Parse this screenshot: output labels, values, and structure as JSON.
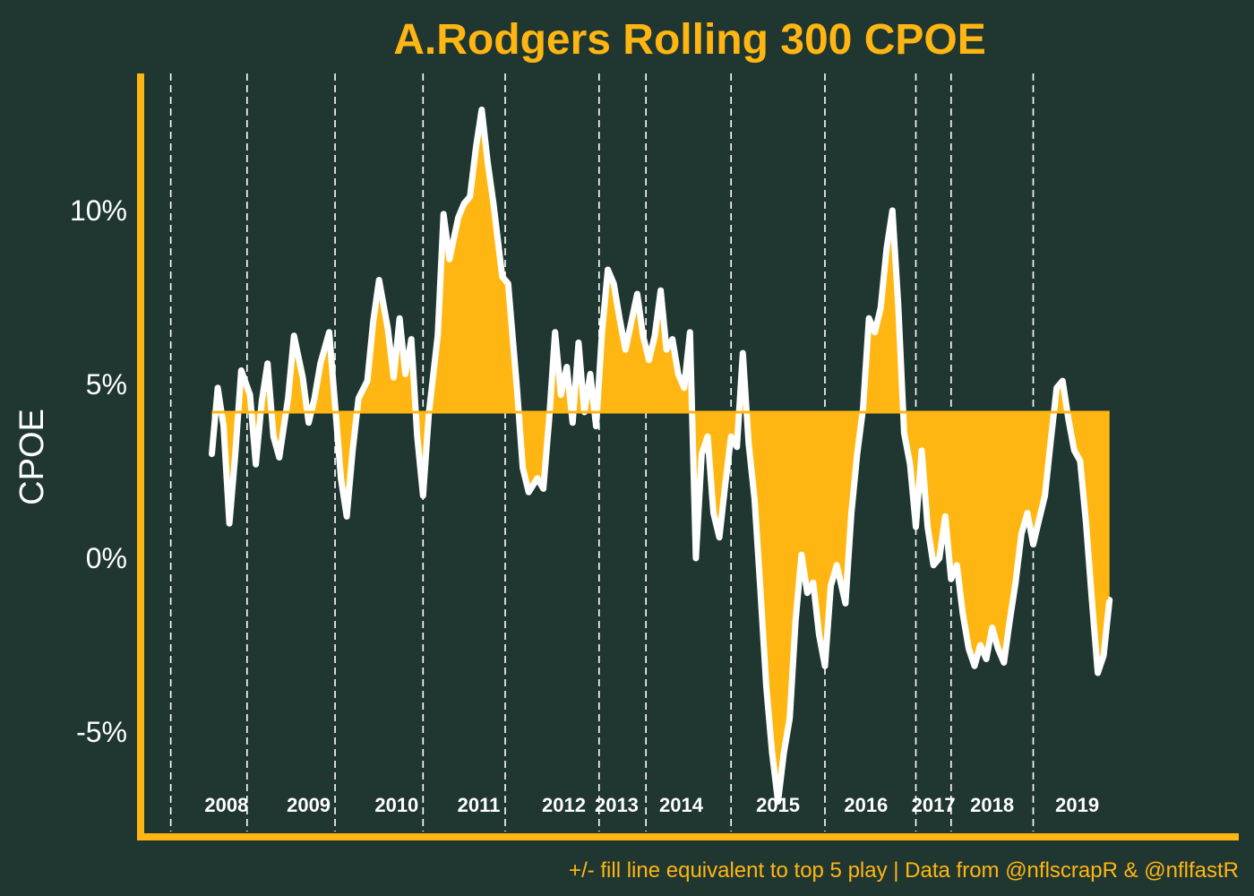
{
  "colors": {
    "background": "#203731",
    "gold": "#FFB612",
    "line": "#FFFFFF",
    "text": "#FFFFFF"
  },
  "chart_data": {
    "type": "area",
    "title": "A.Rodgers Rolling 300 CPOE",
    "ylabel": "CPOE",
    "xlabel": "",
    "caption": "+/- fill line equivalent to top 5 play | Data from @nflscrapR & @nflfastR",
    "ylim": [
      -8,
      14
    ],
    "yticks": [
      -5,
      0,
      5,
      10
    ],
    "ytick_labels": [
      "-5%",
      "0%",
      "5%",
      "10%"
    ],
    "reference_line": 4.2,
    "grid": false,
    "season_boundaries": [
      0.6,
      3.2,
      6.2,
      9.2,
      12.0,
      15.2,
      16.8,
      19.7,
      22.9,
      26.0,
      27.2,
      30.0
    ],
    "seasons": [
      {
        "label": "2008",
        "x": 2.5
      },
      {
        "label": "2009",
        "x": 5.3
      },
      {
        "label": "2010",
        "x": 8.3
      },
      {
        "label": "2011",
        "x": 11.1
      },
      {
        "label": "2012",
        "x": 14.0
      },
      {
        "label": "2013",
        "x": 15.8
      },
      {
        "label": "2014",
        "x": 18.0
      },
      {
        "label": "2015",
        "x": 21.3
      },
      {
        "label": "2016",
        "x": 24.3
      },
      {
        "label": "2017",
        "x": 26.6
      },
      {
        "label": "2018",
        "x": 28.6
      },
      {
        "label": "2019",
        "x": 31.5
      }
    ],
    "series": [
      {
        "points": [
          [
            2.0,
            3.0
          ],
          [
            2.2,
            4.9
          ],
          [
            2.4,
            3.8
          ],
          [
            2.6,
            1.0
          ],
          [
            2.8,
            3.0
          ],
          [
            3.0,
            5.4
          ],
          [
            3.3,
            4.7
          ],
          [
            3.5,
            2.7
          ],
          [
            3.7,
            4.5
          ],
          [
            3.9,
            5.6
          ],
          [
            4.1,
            3.5
          ],
          [
            4.3,
            2.9
          ],
          [
            4.6,
            4.6
          ],
          [
            4.8,
            6.4
          ],
          [
            5.1,
            5.2
          ],
          [
            5.3,
            3.9
          ],
          [
            5.5,
            4.6
          ],
          [
            5.7,
            5.6
          ],
          [
            6.0,
            6.5
          ],
          [
            6.2,
            4.4
          ],
          [
            6.4,
            2.3
          ],
          [
            6.6,
            1.2
          ],
          [
            6.8,
            3.1
          ],
          [
            7.0,
            4.6
          ],
          [
            7.3,
            5.1
          ],
          [
            7.5,
            6.8
          ],
          [
            7.7,
            8.0
          ],
          [
            8.0,
            6.6
          ],
          [
            8.2,
            5.2
          ],
          [
            8.4,
            6.9
          ],
          [
            8.6,
            5.3
          ],
          [
            8.8,
            6.3
          ],
          [
            9.0,
            3.5
          ],
          [
            9.2,
            1.8
          ],
          [
            9.4,
            4.2
          ],
          [
            9.7,
            6.4
          ],
          [
            9.9,
            9.9
          ],
          [
            10.1,
            8.6
          ],
          [
            10.4,
            9.8
          ],
          [
            10.6,
            10.2
          ],
          [
            10.8,
            10.4
          ],
          [
            11.0,
            11.8
          ],
          [
            11.2,
            12.9
          ],
          [
            11.4,
            11.4
          ],
          [
            11.6,
            10.2
          ],
          [
            11.9,
            8.1
          ],
          [
            12.1,
            7.9
          ],
          [
            12.4,
            4.9
          ],
          [
            12.6,
            2.6
          ],
          [
            12.8,
            1.9
          ],
          [
            13.1,
            2.3
          ],
          [
            13.3,
            2.0
          ],
          [
            13.5,
            4.0
          ],
          [
            13.7,
            6.5
          ],
          [
            13.9,
            4.7
          ],
          [
            14.1,
            5.5
          ],
          [
            14.3,
            3.9
          ],
          [
            14.5,
            6.2
          ],
          [
            14.7,
            4.2
          ],
          [
            14.9,
            5.3
          ],
          [
            15.1,
            3.8
          ],
          [
            15.3,
            6.5
          ],
          [
            15.5,
            8.3
          ],
          [
            15.7,
            7.9
          ],
          [
            15.9,
            6.9
          ],
          [
            16.1,
            6.0
          ],
          [
            16.3,
            6.8
          ],
          [
            16.5,
            7.6
          ],
          [
            16.7,
            6.4
          ],
          [
            16.9,
            5.7
          ],
          [
            17.1,
            6.4
          ],
          [
            17.3,
            7.7
          ],
          [
            17.5,
            6.0
          ],
          [
            17.7,
            6.3
          ],
          [
            17.9,
            5.3
          ],
          [
            18.1,
            4.9
          ],
          [
            18.3,
            6.5
          ],
          [
            18.5,
            0.0
          ],
          [
            18.7,
            3.0
          ],
          [
            18.9,
            3.5
          ],
          [
            19.1,
            1.3
          ],
          [
            19.3,
            0.6
          ],
          [
            19.5,
            2.1
          ],
          [
            19.7,
            3.5
          ],
          [
            19.9,
            3.2
          ],
          [
            20.1,
            5.9
          ],
          [
            20.3,
            3.3
          ],
          [
            20.5,
            1.7
          ],
          [
            20.7,
            -0.9
          ],
          [
            20.9,
            -3.7
          ],
          [
            21.1,
            -5.6
          ],
          [
            21.3,
            -7.0
          ],
          [
            21.5,
            -5.6
          ],
          [
            21.7,
            -4.6
          ],
          [
            21.9,
            -1.8
          ],
          [
            22.1,
            0.1
          ],
          [
            22.3,
            -1.0
          ],
          [
            22.5,
            -0.7
          ],
          [
            22.7,
            -2.2
          ],
          [
            22.9,
            -3.1
          ],
          [
            23.1,
            -0.8
          ],
          [
            23.3,
            -0.2
          ],
          [
            23.6,
            -1.3
          ],
          [
            23.8,
            1.3
          ],
          [
            24.0,
            3.0
          ],
          [
            24.2,
            4.3
          ],
          [
            24.4,
            6.9
          ],
          [
            24.6,
            6.5
          ],
          [
            24.8,
            7.2
          ],
          [
            25.0,
            8.9
          ],
          [
            25.2,
            10.0
          ],
          [
            25.4,
            7.3
          ],
          [
            25.6,
            3.6
          ],
          [
            25.8,
            2.7
          ],
          [
            26.0,
            0.9
          ],
          [
            26.2,
            3.1
          ],
          [
            26.4,
            0.9
          ],
          [
            26.6,
            -0.2
          ],
          [
            26.8,
            0.0
          ],
          [
            27.0,
            1.2
          ],
          [
            27.2,
            -0.6
          ],
          [
            27.4,
            -0.2
          ],
          [
            27.6,
            -1.6
          ],
          [
            27.8,
            -2.6
          ],
          [
            28.0,
            -3.1
          ],
          [
            28.2,
            -2.5
          ],
          [
            28.4,
            -2.9
          ],
          [
            28.6,
            -2.0
          ],
          [
            28.8,
            -2.6
          ],
          [
            29.0,
            -3.0
          ],
          [
            29.2,
            -1.8
          ],
          [
            29.4,
            -0.7
          ],
          [
            29.6,
            0.7
          ],
          [
            29.8,
            1.3
          ],
          [
            30.0,
            0.4
          ],
          [
            30.2,
            1.1
          ],
          [
            30.4,
            1.8
          ],
          [
            30.6,
            3.4
          ],
          [
            30.8,
            4.9
          ],
          [
            31.0,
            5.1
          ],
          [
            31.2,
            4.0
          ],
          [
            31.4,
            3.1
          ],
          [
            31.6,
            2.8
          ],
          [
            31.8,
            1.0
          ],
          [
            32.0,
            -1.2
          ],
          [
            32.2,
            -3.3
          ],
          [
            32.4,
            -2.8
          ],
          [
            32.6,
            -1.2
          ]
        ]
      }
    ]
  }
}
